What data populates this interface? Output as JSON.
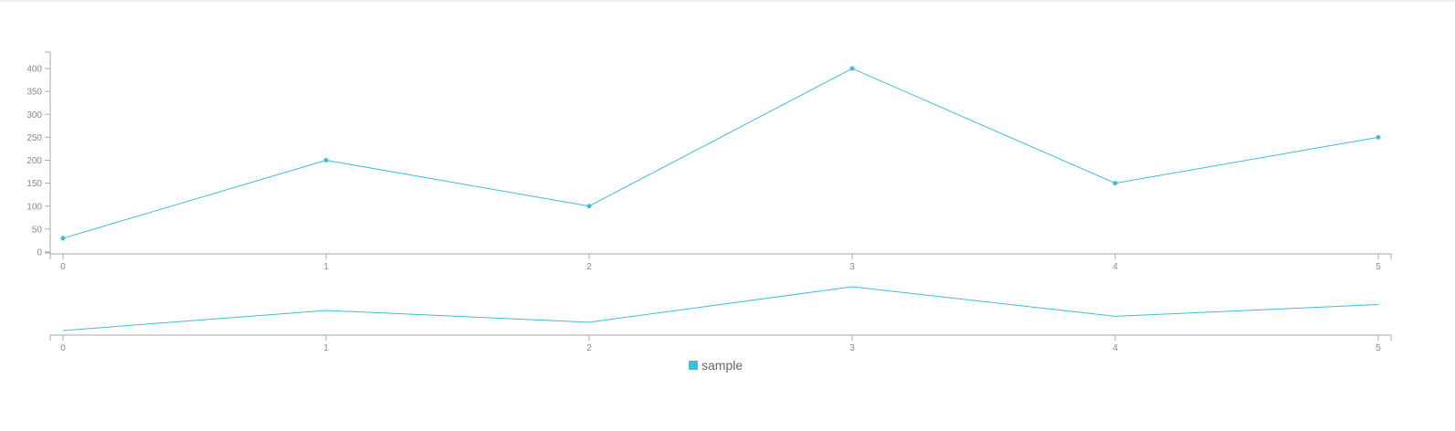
{
  "chart_data": {
    "type": "line",
    "x": [
      0,
      1,
      2,
      3,
      4,
      5
    ],
    "series": [
      {
        "name": "sample",
        "values": [
          30,
          200,
          100,
          400,
          150,
          250
        ],
        "color": "#40bcd8"
      }
    ],
    "xlim": [
      0,
      5
    ],
    "ylim": [
      0,
      400
    ],
    "yticks": [
      0,
      50,
      100,
      150,
      200,
      250,
      300,
      350,
      400
    ],
    "xticks": [
      0,
      1,
      2,
      3,
      4,
      5
    ],
    "title": "",
    "xlabel": "",
    "ylabel": "",
    "grid": false,
    "legend": "bottom-center",
    "has_context_chart": true,
    "axis_color": "#aaaaaa",
    "tick_text_color": "#8a8a8a"
  }
}
